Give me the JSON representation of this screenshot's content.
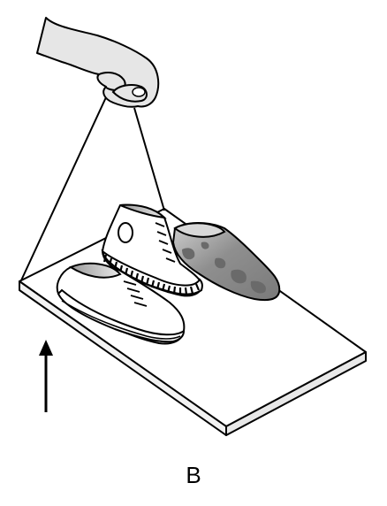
{
  "panel_label": "B",
  "colors": {
    "stroke": "#000000",
    "board_top": "#ffffff",
    "board_edge": "#f2f2f2",
    "hand_skin": "#e6e6e6",
    "shoe_white": "#ffffff",
    "shoe_gray": "#8f8f8f",
    "shoe_gray_dark": "#6a6a6a",
    "shoe_inner": "#bdbdbd"
  },
  "icons": {
    "arrow": "up-arrow-icon",
    "hand": "hand-icon"
  }
}
